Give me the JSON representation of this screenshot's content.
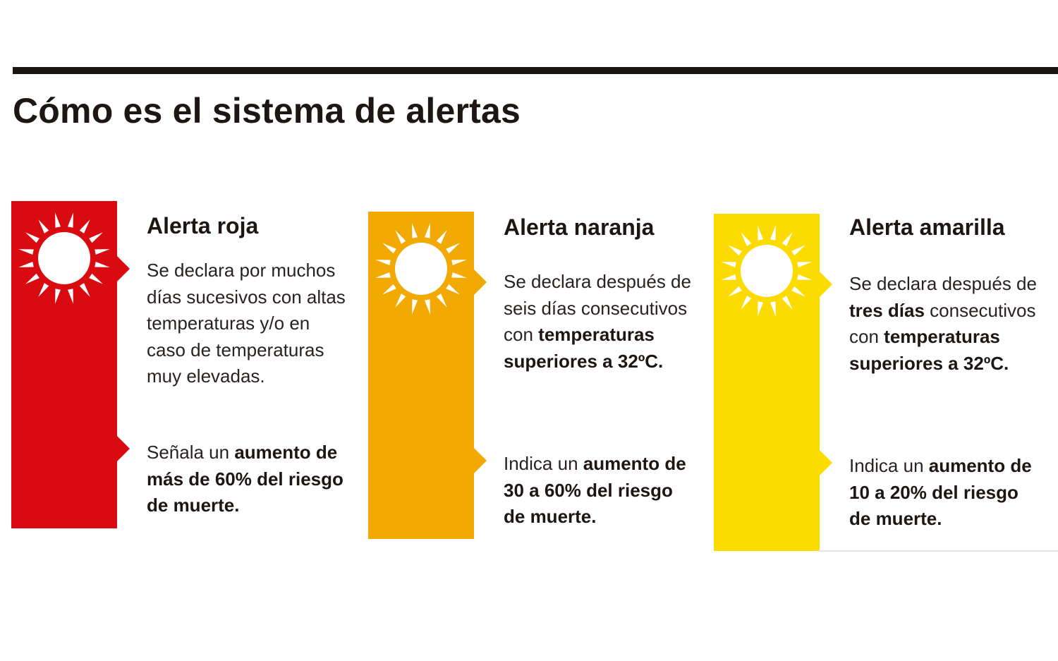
{
  "title": "Cómo es el sistema de alertas",
  "colors": {
    "rule": "#1c1512",
    "text": "#1e1614",
    "sun": "#ffffff"
  },
  "alerts": [
    {
      "name": "Alerta roja",
      "color": "#d90a10",
      "icon": "sun-icon",
      "p1": [
        "Se declara por muchos días sucesivos con altas temperaturas y/o en caso de temperaturas muy elevadas."
      ],
      "p2": [
        "Señala un ",
        "aumento de más de 60% del riesgo de muerte."
      ]
    },
    {
      "name": "Alerta naranja",
      "color": "#f2a901",
      "icon": "sun-icon",
      "p1": [
        "Se declara después de seis días consecutivos con ",
        "temperaturas superiores a 32ºC."
      ],
      "p2": [
        "Indica un ",
        "aumento de 30 a 60% del riesgo de muerte."
      ]
    },
    {
      "name": "Alerta amarilla",
      "color": "#fcdc00",
      "icon": "sun-icon",
      "p1": [
        "Se declara después de ",
        "tres días",
        " consecutivos con ",
        "temperaturas superiores a 32ºC."
      ],
      "p2": [
        "Indica un ",
        "aumento de 10 a 20% del riesgo de muerte."
      ]
    }
  ]
}
